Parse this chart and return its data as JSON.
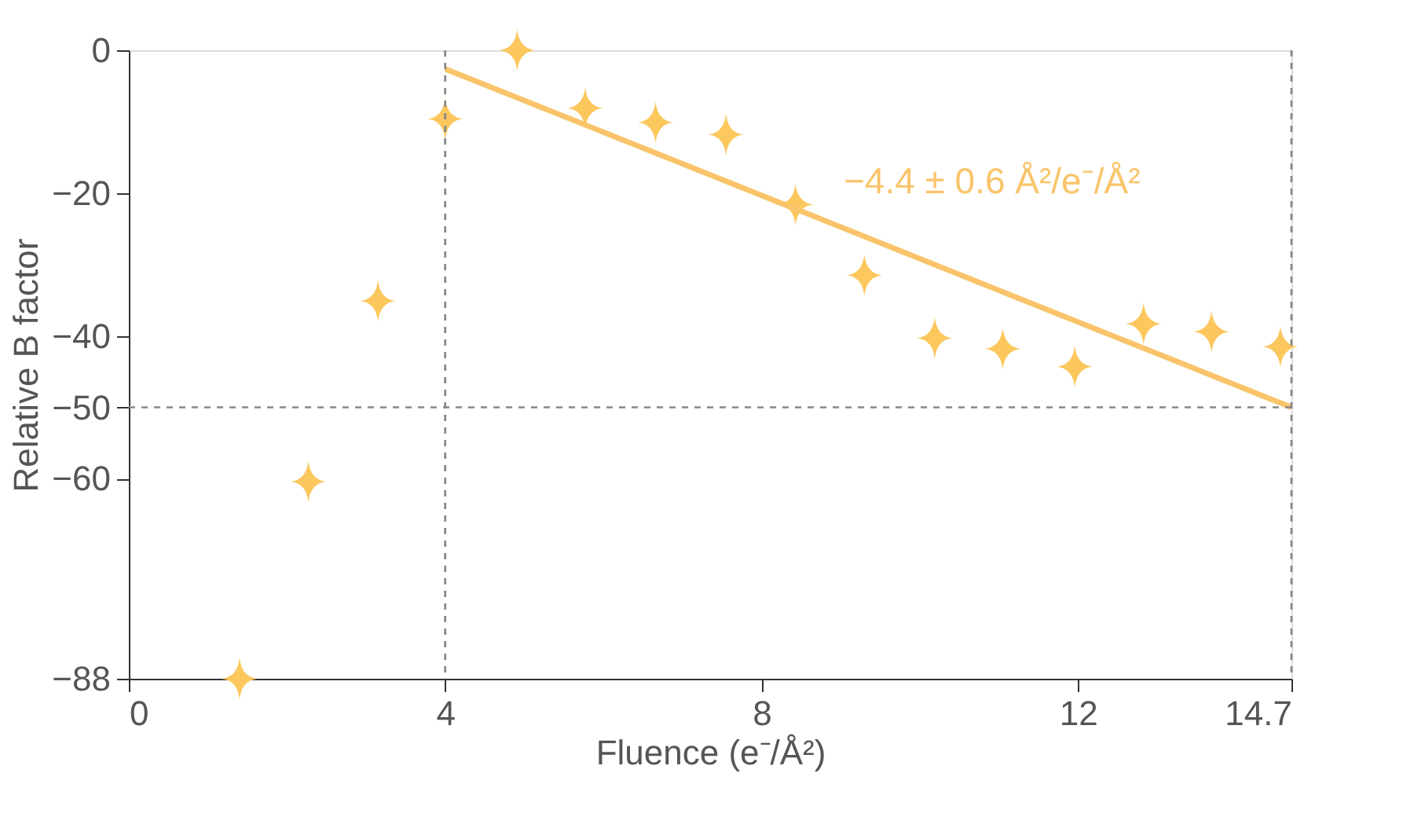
{
  "chart_data": {
    "type": "scatter",
    "xlabel": "Fluence (e⁻/Å²)",
    "ylabel": "Relative B factor",
    "xlim": [
      0,
      14.7
    ],
    "xticks": [
      0,
      4,
      8,
      12,
      14.7
    ],
    "ylim": [
      -88,
      0
    ],
    "yticks": [
      {
        "value": 0,
        "label": "0"
      },
      {
        "value": -20,
        "label": "−20"
      },
      {
        "value": -40,
        "label": "−40"
      },
      {
        "value": -50,
        "label": "−50"
      },
      {
        "value": -60,
        "label": "−60"
      },
      {
        "value": -88,
        "label": "−88"
      }
    ],
    "series": [
      {
        "color": "#fcc75d",
        "marker": "star",
        "x": [
          1.4,
          2.27,
          3.15,
          4.0,
          4.91,
          5.77,
          6.66,
          7.55,
          8.43,
          9.3,
          10.19,
          11.05,
          11.96,
          12.83,
          13.69,
          14.56
        ],
        "values": [
          -88,
          -60.4,
          -35.1,
          -9.6,
          0,
          -8.1,
          -10.1,
          -11.8,
          -21.6,
          -31.5,
          -40.3,
          -41.8,
          -44.3,
          -38.3,
          -39.4,
          -41.5
        ]
      },
      {
        "type": "line",
        "color": "#f9c46a",
        "line_style": "solid",
        "marker": "none",
        "x": [
          4,
          14.7
        ],
        "values": [
          -2.6,
          -50
        ]
      }
    ],
    "ref_lines": [
      {
        "axis": "x",
        "value": 4,
        "label": null,
        "line_style": "dashed",
        "color": "#888888"
      },
      {
        "axis": "x",
        "value": 14.7,
        "label": null,
        "line_style": "dashed",
        "color": "#888888"
      },
      {
        "axis": "y",
        "value": -50,
        "label": null,
        "line_style": "dashed",
        "color": "#888888"
      }
    ],
    "annotations": [
      "−4.4 ± 0.6 Å²/e⁻/Å²"
    ],
    "grid": false,
    "legend": false
  }
}
